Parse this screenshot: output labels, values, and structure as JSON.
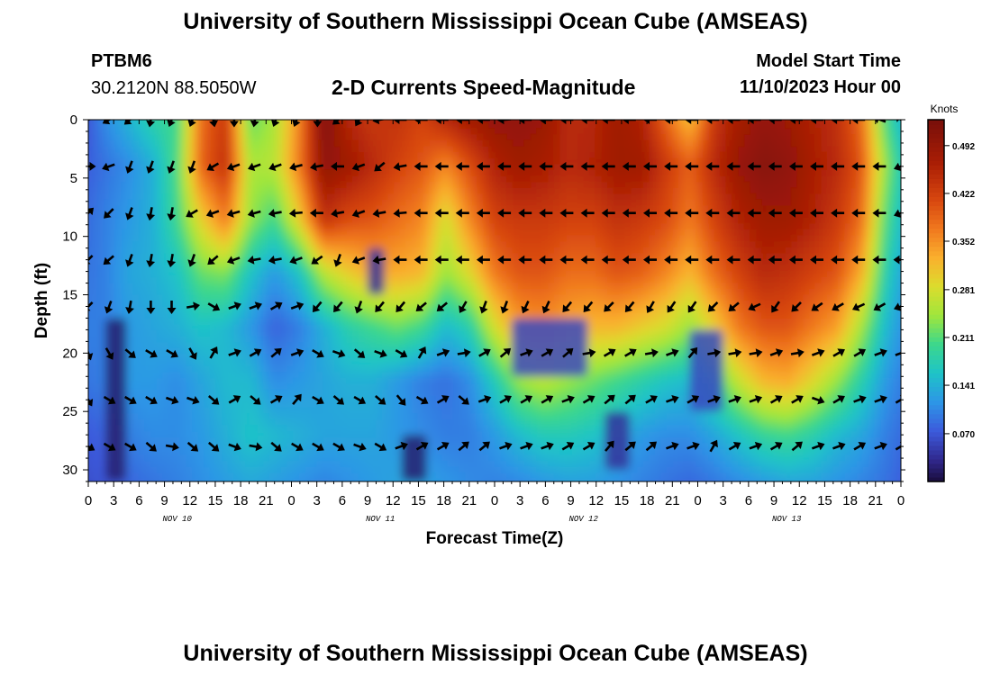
{
  "header": {
    "title_top": "University of Southern Mississippi Ocean Cube (AMSEAS)",
    "station_id": "PTBM6",
    "station_coords": "30.2120N  88.5050W",
    "plot_title": "2-D Currents Speed-Magnitude",
    "model_start_label": "Model Start Time",
    "model_start_value": "11/10/2023 Hour 00",
    "title_bottom": "University of Southern Mississippi Ocean Cube (AMSEAS)"
  },
  "chart_data": {
    "type": "heatmap",
    "title": "2-D Currents Speed-Magnitude",
    "xlabel": "Forecast Time(Z)",
    "ylabel": "Depth (ft)",
    "x_range_hours": [
      0,
      96
    ],
    "ylim": [
      0,
      31
    ],
    "y_inverted": true,
    "x_ticks": [
      "0",
      "3",
      "6",
      "9",
      "12",
      "15",
      "18",
      "21",
      "0",
      "3",
      "6",
      "9",
      "12",
      "15",
      "18",
      "21",
      "0",
      "3",
      "6",
      "9",
      "12",
      "15",
      "18",
      "21",
      "0",
      "3",
      "6",
      "9",
      "12",
      "15",
      "18",
      "21",
      "0"
    ],
    "x_day_labels": [
      {
        "label": "NOV 10",
        "hour": 10.5
      },
      {
        "label": "NOV 11",
        "hour": 34.5
      },
      {
        "label": "NOV 12",
        "hour": 58.5
      },
      {
        "label": "NOV 13",
        "hour": 82.5
      }
    ],
    "y_ticks": [
      "0",
      "5",
      "10",
      "15",
      "20",
      "25",
      "30"
    ],
    "colorbar": {
      "label": "Knots",
      "ticks": [
        "0.070",
        "0.141",
        "0.211",
        "0.281",
        "0.352",
        "0.422",
        "0.492"
      ],
      "range": [
        0,
        0.53
      ]
    },
    "arrow_depths_ft": [
      0,
      4,
      8,
      12,
      16,
      20,
      24,
      28
    ],
    "arrow_angles_deg": [
      [
        200,
        210,
        220,
        260,
        250,
        250,
        280,
        270,
        260,
        250,
        250,
        270,
        220,
        240,
        190,
        180,
        180,
        180,
        180,
        180,
        185,
        180,
        180,
        180,
        180,
        180,
        180,
        180,
        180,
        180,
        180,
        180,
        180,
        180,
        180,
        180,
        180,
        180,
        160,
        140
      ],
      [
        0,
        200,
        250,
        250,
        250,
        250,
        210,
        200,
        200,
        200,
        195,
        190,
        180,
        200,
        220,
        190,
        180,
        180,
        180,
        180,
        180,
        180,
        180,
        180,
        180,
        180,
        180,
        180,
        180,
        180,
        180,
        180,
        180,
        180,
        180,
        180,
        180,
        180,
        180,
        200
      ],
      [
        45,
        225,
        250,
        260,
        260,
        210,
        200,
        195,
        195,
        190,
        185,
        180,
        190,
        200,
        190,
        185,
        180,
        180,
        180,
        180,
        180,
        180,
        180,
        180,
        180,
        180,
        180,
        180,
        180,
        180,
        180,
        180,
        180,
        180,
        180,
        180,
        180,
        180,
        180,
        200
      ],
      [
        225,
        220,
        250,
        260,
        260,
        250,
        220,
        200,
        190,
        190,
        200,
        215,
        250,
        200,
        190,
        180,
        180,
        180,
        180,
        180,
        180,
        180,
        180,
        180,
        180,
        180,
        180,
        180,
        180,
        180,
        180,
        180,
        180,
        180,
        180,
        180,
        180,
        180,
        180,
        180
      ],
      [
        225,
        250,
        260,
        270,
        270,
        10,
        330,
        20,
        20,
        30,
        20,
        230,
        230,
        250,
        230,
        230,
        220,
        220,
        240,
        250,
        250,
        245,
        245,
        230,
        230,
        225,
        230,
        240,
        235,
        235,
        225,
        220,
        205,
        235,
        225,
        215,
        210,
        205,
        210,
        200
      ],
      [
        290,
        300,
        320,
        330,
        330,
        300,
        60,
        20,
        30,
        40,
        20,
        330,
        340,
        320,
        340,
        330,
        60,
        20,
        10,
        30,
        40,
        20,
        30,
        40,
        10,
        30,
        30,
        10,
        20,
        50,
        10,
        10,
        10,
        20,
        10,
        20,
        30,
        30,
        20,
        20
      ],
      [
        300,
        330,
        330,
        330,
        340,
        340,
        320,
        30,
        320,
        30,
        50,
        330,
        320,
        330,
        320,
        310,
        330,
        30,
        320,
        20,
        30,
        30,
        30,
        20,
        30,
        40,
        40,
        30,
        20,
        30,
        20,
        20,
        20,
        30,
        30,
        340,
        30,
        20,
        20,
        30
      ],
      [
        330,
        330,
        330,
        320,
        350,
        320,
        320,
        340,
        350,
        320,
        330,
        330,
        330,
        340,
        330,
        20,
        30,
        30,
        40,
        40,
        20,
        20,
        20,
        30,
        30,
        50,
        40,
        40,
        20,
        20,
        60,
        30,
        20,
        30,
        40,
        20,
        20,
        30,
        20,
        30
      ]
    ],
    "speed_grid_knots": [
      [
        0.05,
        0.11,
        0.15,
        0.19,
        0.2,
        0.38,
        0.43,
        0.21,
        0.25,
        0.36,
        0.52,
        0.45,
        0.43,
        0.44,
        0.42,
        0.47,
        0.49,
        0.5,
        0.5,
        0.49,
        0.45,
        0.45,
        0.48,
        0.46,
        0.38,
        0.3,
        0.43,
        0.47,
        0.49,
        0.48,
        0.46,
        0.44,
        0.38,
        0.2,
        0.12
      ],
      [
        0.07,
        0.09,
        0.11,
        0.14,
        0.21,
        0.39,
        0.44,
        0.25,
        0.26,
        0.37,
        0.5,
        0.48,
        0.45,
        0.42,
        0.4,
        0.36,
        0.41,
        0.46,
        0.48,
        0.47,
        0.45,
        0.46,
        0.48,
        0.48,
        0.43,
        0.39,
        0.45,
        0.49,
        0.51,
        0.5,
        0.47,
        0.45,
        0.4,
        0.24,
        0.14
      ],
      [
        0.08,
        0.1,
        0.12,
        0.14,
        0.2,
        0.3,
        0.37,
        0.24,
        0.2,
        0.3,
        0.44,
        0.41,
        0.4,
        0.38,
        0.36,
        0.28,
        0.36,
        0.42,
        0.43,
        0.43,
        0.42,
        0.42,
        0.44,
        0.43,
        0.41,
        0.37,
        0.42,
        0.46,
        0.48,
        0.48,
        0.46,
        0.43,
        0.38,
        0.21,
        0.13
      ],
      [
        0.09,
        0.1,
        0.13,
        0.14,
        0.16,
        0.22,
        0.23,
        0.16,
        0.12,
        0.16,
        0.26,
        0.3,
        0.33,
        0.33,
        0.32,
        0.24,
        0.29,
        0.37,
        0.4,
        0.4,
        0.38,
        0.38,
        0.4,
        0.39,
        0.36,
        0.32,
        0.38,
        0.42,
        0.45,
        0.44,
        0.42,
        0.4,
        0.33,
        0.18,
        0.11
      ],
      [
        0.1,
        0.1,
        0.12,
        0.13,
        0.14,
        0.16,
        0.15,
        0.12,
        0.08,
        0.1,
        0.14,
        0.18,
        0.2,
        0.22,
        0.2,
        0.15,
        0.18,
        0.28,
        0.34,
        0.35,
        0.33,
        0.32,
        0.32,
        0.3,
        0.28,
        0.24,
        0.3,
        0.37,
        0.4,
        0.4,
        0.37,
        0.34,
        0.25,
        0.15,
        0.1
      ],
      [
        0.09,
        0.1,
        0.12,
        0.12,
        0.11,
        0.13,
        0.15,
        0.15,
        0.11,
        0.12,
        0.13,
        0.14,
        0.14,
        0.12,
        0.1,
        0.09,
        0.11,
        0.17,
        0.24,
        0.26,
        0.24,
        0.22,
        0.2,
        0.18,
        0.16,
        0.15,
        0.2,
        0.27,
        0.32,
        0.33,
        0.29,
        0.24,
        0.18,
        0.12,
        0.09
      ],
      [
        0.07,
        0.08,
        0.1,
        0.11,
        0.11,
        0.12,
        0.14,
        0.16,
        0.15,
        0.14,
        0.13,
        0.13,
        0.13,
        0.12,
        0.11,
        0.1,
        0.1,
        0.12,
        0.15,
        0.17,
        0.17,
        0.16,
        0.14,
        0.12,
        0.11,
        0.11,
        0.13,
        0.16,
        0.19,
        0.2,
        0.18,
        0.15,
        0.13,
        0.1,
        0.08
      ],
      [
        0.06,
        0.07,
        0.08,
        0.09,
        0.1,
        0.11,
        0.12,
        0.13,
        0.12,
        0.11,
        0.1,
        0.11,
        0.12,
        0.13,
        0.13,
        0.12,
        0.11,
        0.1,
        0.1,
        0.11,
        0.12,
        0.12,
        0.11,
        0.1,
        0.09,
        0.08,
        0.09,
        0.1,
        0.11,
        0.12,
        0.12,
        0.11,
        0.1,
        0.09,
        0.07
      ]
    ],
    "low_speed_patches_knots": [
      {
        "hour_range": [
          2,
          4.5
        ],
        "depth_range": [
          17,
          31
        ],
        "value": 0.02
      },
      {
        "hour_range": [
          33,
          35
        ],
        "depth_range": [
          11,
          15
        ],
        "value": 0.04
      },
      {
        "hour_range": [
          37,
          40
        ],
        "depth_range": [
          27,
          31
        ],
        "value": 0.02
      },
      {
        "hour_range": [
          61,
          64
        ],
        "depth_range": [
          25,
          30
        ],
        "value": 0.04
      },
      {
        "hour_range": [
          71,
          75
        ],
        "depth_range": [
          18,
          25
        ],
        "value": 0.06
      },
      {
        "hour_range": [
          50,
          59
        ],
        "depth_range": [
          17,
          22
        ],
        "value": 0.06
      }
    ]
  }
}
